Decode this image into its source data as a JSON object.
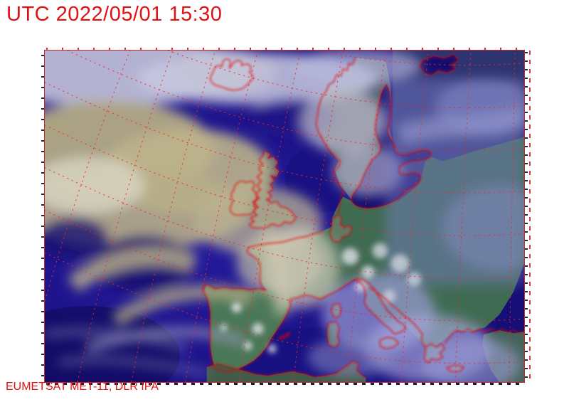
{
  "header": {
    "timestamp": "UTC 2022/05/01 15:30"
  },
  "footer": {
    "credit": "EUMETSAT MET-11, DLR IPA"
  },
  "colors": {
    "annotation_red": "#e21212",
    "coastline_red": "#e60000",
    "graticule_red": "#f02828",
    "frame_red": "#c02a2a",
    "ocean_deep_blue": "#1c1384",
    "inland_sea_blue": "#140d6e",
    "cloud_tan": "#b4ac87",
    "cloud_white": "#d6d4e6",
    "haze_violet": "#8087c8",
    "land_green": "#477159"
  }
}
